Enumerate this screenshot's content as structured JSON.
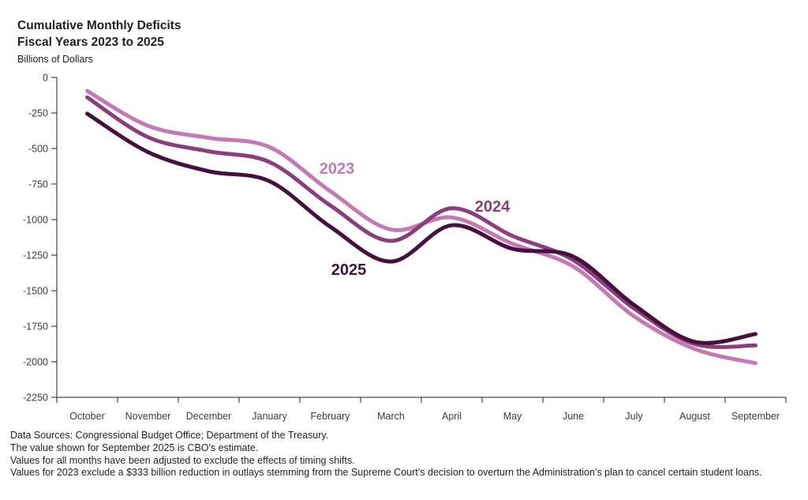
{
  "header": {
    "title_line1": "Cumulative Monthly Deficits",
    "title_line2": "Fiscal Years 2023 to 2025",
    "units_label": "Billions of Dollars"
  },
  "chart_data": {
    "type": "line",
    "title": "Cumulative Monthly Deficits, Fiscal Years 2023 to 2025",
    "ylabel": "Billions of Dollars",
    "xlabel": "",
    "grid": false,
    "legend_position": "inline-labels",
    "ylim": [
      -2250,
      0
    ],
    "ytick_step": 250,
    "ytick_labels": [
      "0",
      "-250",
      "-500",
      "-750",
      "-1000",
      "-1250",
      "-1500",
      "-1750",
      "-2000",
      "-2250"
    ],
    "categories": [
      "October",
      "November",
      "December",
      "January",
      "February",
      "March",
      "April",
      "May",
      "June",
      "July",
      "August",
      "September"
    ],
    "series": [
      {
        "name": "2023",
        "color": "#c478b4",
        "values": [
          -95,
          -340,
          -425,
          -490,
          -800,
          -1070,
          -985,
          -1170,
          -1330,
          -1680,
          -1910,
          -2010
        ]
      },
      {
        "name": "2024",
        "color": "#8c3e7c",
        "values": [
          -140,
          -420,
          -520,
          -595,
          -900,
          -1150,
          -920,
          -1115,
          -1285,
          -1625,
          -1875,
          -1885
        ]
      },
      {
        "name": "2025",
        "color": "#45103e",
        "values": [
          -255,
          -525,
          -660,
          -730,
          -1050,
          -1295,
          -1040,
          -1205,
          -1260,
          -1600,
          -1860,
          -1805
        ]
      }
    ],
    "axis_color": "#231f20",
    "tick_label_color": "#3c3c3c"
  },
  "footnotes": [
    "Data Sources: Congressional Budget Office; Department of the Treasury.",
    "The value shown for September 2025 is CBO's estimate.",
    "Values for all months have been adjusted to exclude the effects of timing shifts.",
    "Values for 2023 exclude a $333 billion reduction in outlays stemming from the Supreme Court’s decision to overturn the Administration’s plan to cancel certain student loans."
  ]
}
